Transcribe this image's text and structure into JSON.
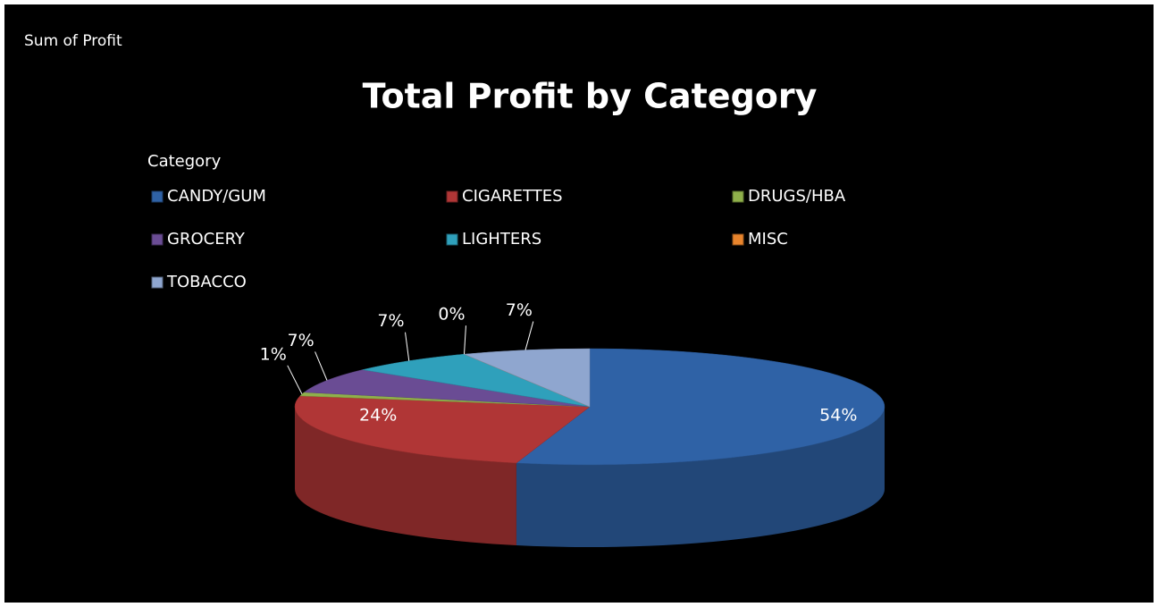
{
  "field_button": "Sum of Profit",
  "chart_data": {
    "type": "pie",
    "title": "Total Profit by Category",
    "legend_title": "Category",
    "categories": [
      "CANDY/GUM",
      "CIGARETTES",
      "DRUGS/HBA",
      "GROCERY",
      "LIGHTERS",
      "MISC",
      "TOBACCO"
    ],
    "values": [
      54,
      24,
      1,
      7,
      7,
      0,
      7
    ],
    "value_labels": [
      "54%",
      "24%",
      "1%",
      "7%",
      "7%",
      "0%",
      "7%"
    ],
    "colors": [
      "#2f62a6",
      "#b03636",
      "#8fb04a",
      "#6a4c94",
      "#2fa0bb",
      "#e8842c",
      "#8fa6cf"
    ],
    "legend": "top"
  }
}
